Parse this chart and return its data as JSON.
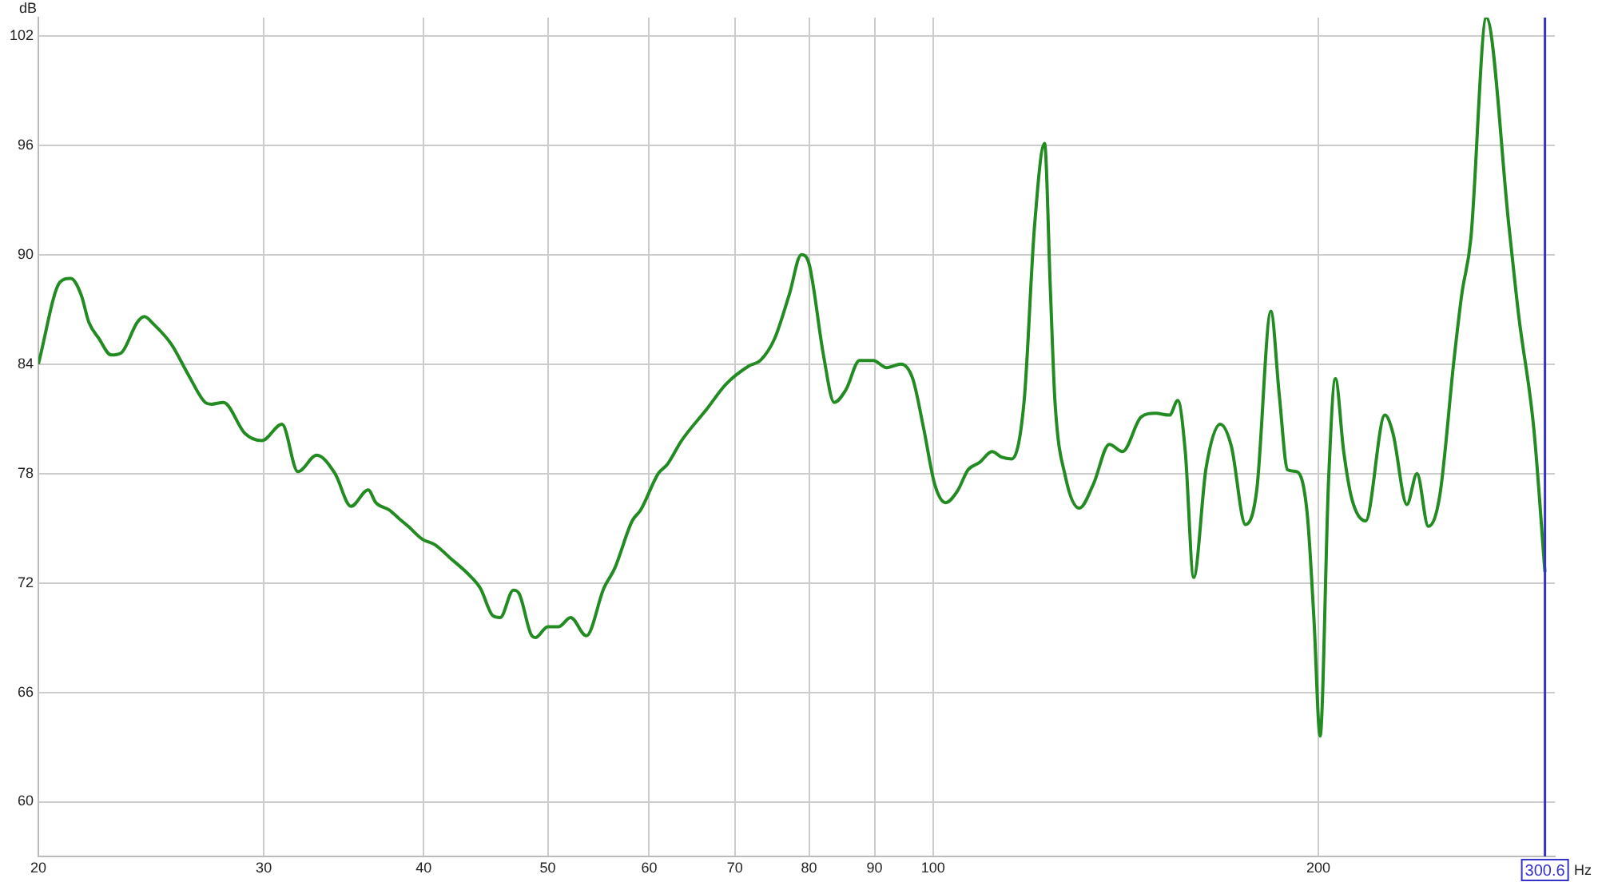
{
  "chart_data": {
    "type": "line",
    "xlabel": "Hz",
    "ylabel": "dB",
    "log": "x",
    "grid": true,
    "legend": false,
    "marker": "none",
    "line_style": "solid",
    "xlim": [
      20,
      306
    ],
    "xticks": [
      20,
      30,
      40,
      50,
      60,
      70,
      80,
      90,
      100,
      200
    ],
    "ylim": [
      57,
      103
    ],
    "yticks": [
      60,
      66,
      72,
      78,
      84,
      90,
      96,
      102
    ],
    "ref_lines": [
      {
        "axis": "x",
        "value": 300.6,
        "label": "300.6",
        "color": "#3333cc"
      }
    ],
    "series": [
      {
        "color": "#228b22",
        "x": [
          20,
          20.8,
          21.2,
          21.6,
          21.9,
          22.3,
          22.8,
          23.2,
          23.9,
          24.2,
          24.6,
          25.4,
          26.2,
          27.0,
          27.3,
          27.9,
          29.0,
          29.9,
          31.0,
          31.9,
          33.0,
          34.1,
          35.1,
          36.2,
          36.7,
          37.6,
          38.3,
          38.9,
          39.9,
          40.8,
          41.9,
          43.6,
          44.3,
          45.3,
          45.9,
          47.0,
          47.5,
          48.5,
          48.9,
          50,
          51.0,
          52.1,
          53.6,
          55.3,
          56.4,
          58.2,
          59.1,
          61.0,
          62.0,
          63.6,
          66.5,
          68.9,
          71.8,
          73.3,
          75.2,
          77.2,
          78.9,
          80.0,
          82.1,
          83.7,
          85.5,
          87.6,
          89.8,
          92.0,
          94.4,
          96.4,
          98.3,
          100.3,
          102.3,
          104.4,
          106.5,
          108.7,
          111.2,
          113.1,
          115.2,
          117.8,
          120.0,
          122.2,
          123.5,
          124.5,
          126.9,
          130.1,
          133.4,
          137.3,
          140.6,
          145.4,
          149.2,
          153.0,
          155.3,
          157.4,
          159.8,
          163.4,
          167.6,
          171.0,
          175.4,
          179.0,
          183.6,
          186.4,
          189.2,
          192.4,
          196.0,
          198.4,
          200.6,
          203.7,
          206.2,
          209.3,
          212.4,
          217.7,
          225.4,
          228.7,
          234.5,
          238.8,
          243.7,
          248.8,
          255.2,
          258.8,
          263.1,
          270.5,
          281.8,
          286.8,
          294.6,
          300.6
        ],
        "values": [
          84.0,
          88.5,
          88.7,
          87.8,
          86.3,
          85.4,
          84.5,
          84.6,
          86.3,
          86.6,
          86.2,
          85.1,
          83.4,
          81.9,
          81.8,
          81.9,
          80.2,
          79.8,
          80.7,
          78.1,
          79.0,
          78.0,
          76.2,
          77.1,
          76.4,
          76.0,
          75.5,
          75.1,
          74.4,
          74.1,
          73.4,
          72.3,
          71.7,
          70.2,
          70.1,
          71.6,
          71.4,
          69.2,
          69.0,
          69.6,
          69.6,
          70.1,
          69.1,
          71.7,
          72.8,
          75.4,
          76.0,
          78.0,
          78.5,
          79.8,
          81.5,
          82.9,
          83.9,
          84.2,
          85.4,
          87.8,
          90.0,
          89.5,
          84.5,
          81.9,
          82.6,
          84.2,
          84.2,
          83.8,
          84.0,
          83.2,
          80.5,
          77.4,
          76.4,
          77.0,
          78.2,
          78.6,
          79.2,
          78.9,
          78.8,
          82.0,
          91.5,
          96.1,
          88.0,
          82.0,
          77.8,
          76.1,
          77.4,
          79.6,
          79.2,
          81.1,
          81.3,
          81.2,
          82.0,
          79.2,
          72.3,
          78.3,
          80.7,
          79.5,
          75.2,
          77.1,
          86.9,
          82.3,
          78.2,
          78.1,
          75.8,
          70.0,
          63.6,
          77.7,
          83.2,
          79.2,
          76.6,
          75.4,
          81.2,
          80.2,
          76.3,
          78.0,
          75.1,
          76.8,
          84.2,
          87.8,
          90.9,
          103,
          91.5,
          86.6,
          80.5,
          72.6
        ]
      }
    ]
  }
}
